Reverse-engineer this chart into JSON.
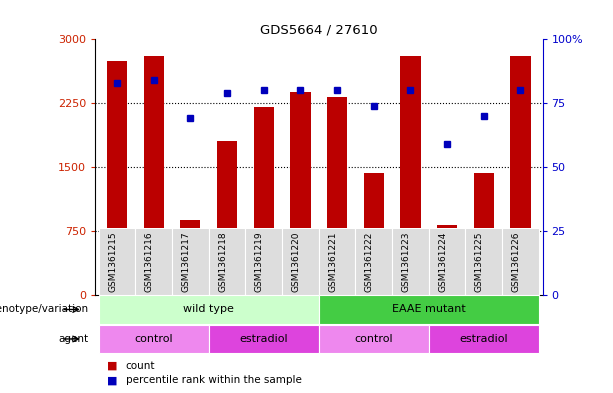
{
  "title": "GDS5664 / 27610",
  "samples": [
    "GSM1361215",
    "GSM1361216",
    "GSM1361217",
    "GSM1361218",
    "GSM1361219",
    "GSM1361220",
    "GSM1361221",
    "GSM1361222",
    "GSM1361223",
    "GSM1361224",
    "GSM1361225",
    "GSM1361226"
  ],
  "counts": [
    2750,
    2800,
    880,
    1800,
    2200,
    2380,
    2320,
    1430,
    2800,
    820,
    1430,
    2800
  ],
  "percentiles": [
    83,
    84,
    69,
    79,
    80,
    80,
    80,
    74,
    80,
    59,
    70,
    80
  ],
  "ylim_left": [
    0,
    3000
  ],
  "ylim_right": [
    0,
    100
  ],
  "yticks_left": [
    0,
    750,
    1500,
    2250,
    3000
  ],
  "yticks_left_labels": [
    "0",
    "750",
    "1500",
    "2250",
    "3000"
  ],
  "yticks_right": [
    0,
    25,
    50,
    75,
    100
  ],
  "yticks_right_labels": [
    "0",
    "25",
    "50",
    "75",
    "100%"
  ],
  "bar_color": "#bb0000",
  "dot_color": "#0000bb",
  "background_color": "#ffffff",
  "plot_bg_color": "#ffffff",
  "tick_label_color_left": "#cc2200",
  "tick_label_color_right": "#0000cc",
  "genotype_groups": [
    {
      "label": "wild type",
      "start": 0,
      "end": 5,
      "color": "#ccffcc"
    },
    {
      "label": "EAAE mutant",
      "start": 6,
      "end": 11,
      "color": "#44cc44"
    }
  ],
  "agent_groups": [
    {
      "label": "control",
      "start": 0,
      "end": 2,
      "color": "#ee88ee"
    },
    {
      "label": "estradiol",
      "start": 3,
      "end": 5,
      "color": "#dd44dd"
    },
    {
      "label": "control",
      "start": 6,
      "end": 8,
      "color": "#ee88ee"
    },
    {
      "label": "estradiol",
      "start": 9,
      "end": 11,
      "color": "#dd44dd"
    }
  ],
  "genotype_label": "genotype/variation",
  "agent_label": "agent",
  "legend_count_label": "count",
  "legend_percentile_label": "percentile rank within the sample",
  "xticklabel_bg": "#dddddd"
}
